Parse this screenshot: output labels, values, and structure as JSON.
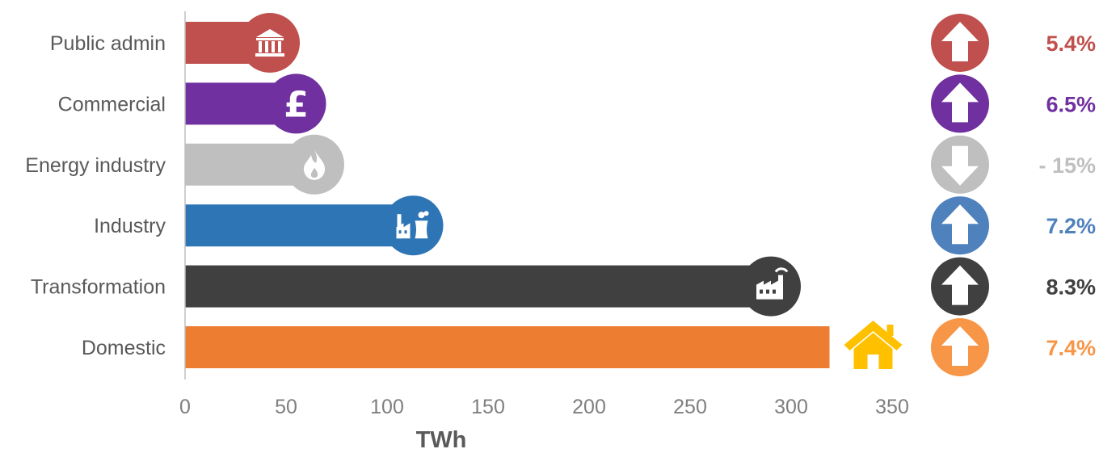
{
  "chart_data": {
    "type": "bar",
    "orientation": "horizontal",
    "categories": [
      "Public admin",
      "Commercial",
      "Energy industry",
      "Industry",
      "Transformation",
      "Domestic"
    ],
    "values": [
      42,
      55,
      64,
      113,
      290,
      319
    ],
    "xlabel": "TWh",
    "ylabel": "",
    "xlim": [
      0,
      350
    ],
    "xticks": [
      0,
      50,
      100,
      150,
      200,
      250,
      300,
      350
    ],
    "grid": false,
    "legend": "none",
    "colors": [
      "#c0504d",
      "#7030a0",
      "#bfbfbf",
      "#2e75b6",
      "#404040",
      "#ed7d31"
    ],
    "icons": [
      "government-building-icon",
      "pound-sign-icon",
      "flame-icon",
      "factory-cooling-tower-icon",
      "factory-icon",
      "house-icon"
    ],
    "changes": [
      {
        "label": "5.4%",
        "direction": "up",
        "color": "#c0504d"
      },
      {
        "label": "6.5%",
        "direction": "up",
        "color": "#7030a0"
      },
      {
        "label": "- 15%",
        "direction": "down",
        "color": "#bfbfbf"
      },
      {
        "label": "7.2%",
        "direction": "up",
        "color": "#4f81bd"
      },
      {
        "label": "8.3%",
        "direction": "up",
        "color": "#404040"
      },
      {
        "label": "7.4%",
        "direction": "up",
        "color": "#f79646"
      }
    ]
  }
}
